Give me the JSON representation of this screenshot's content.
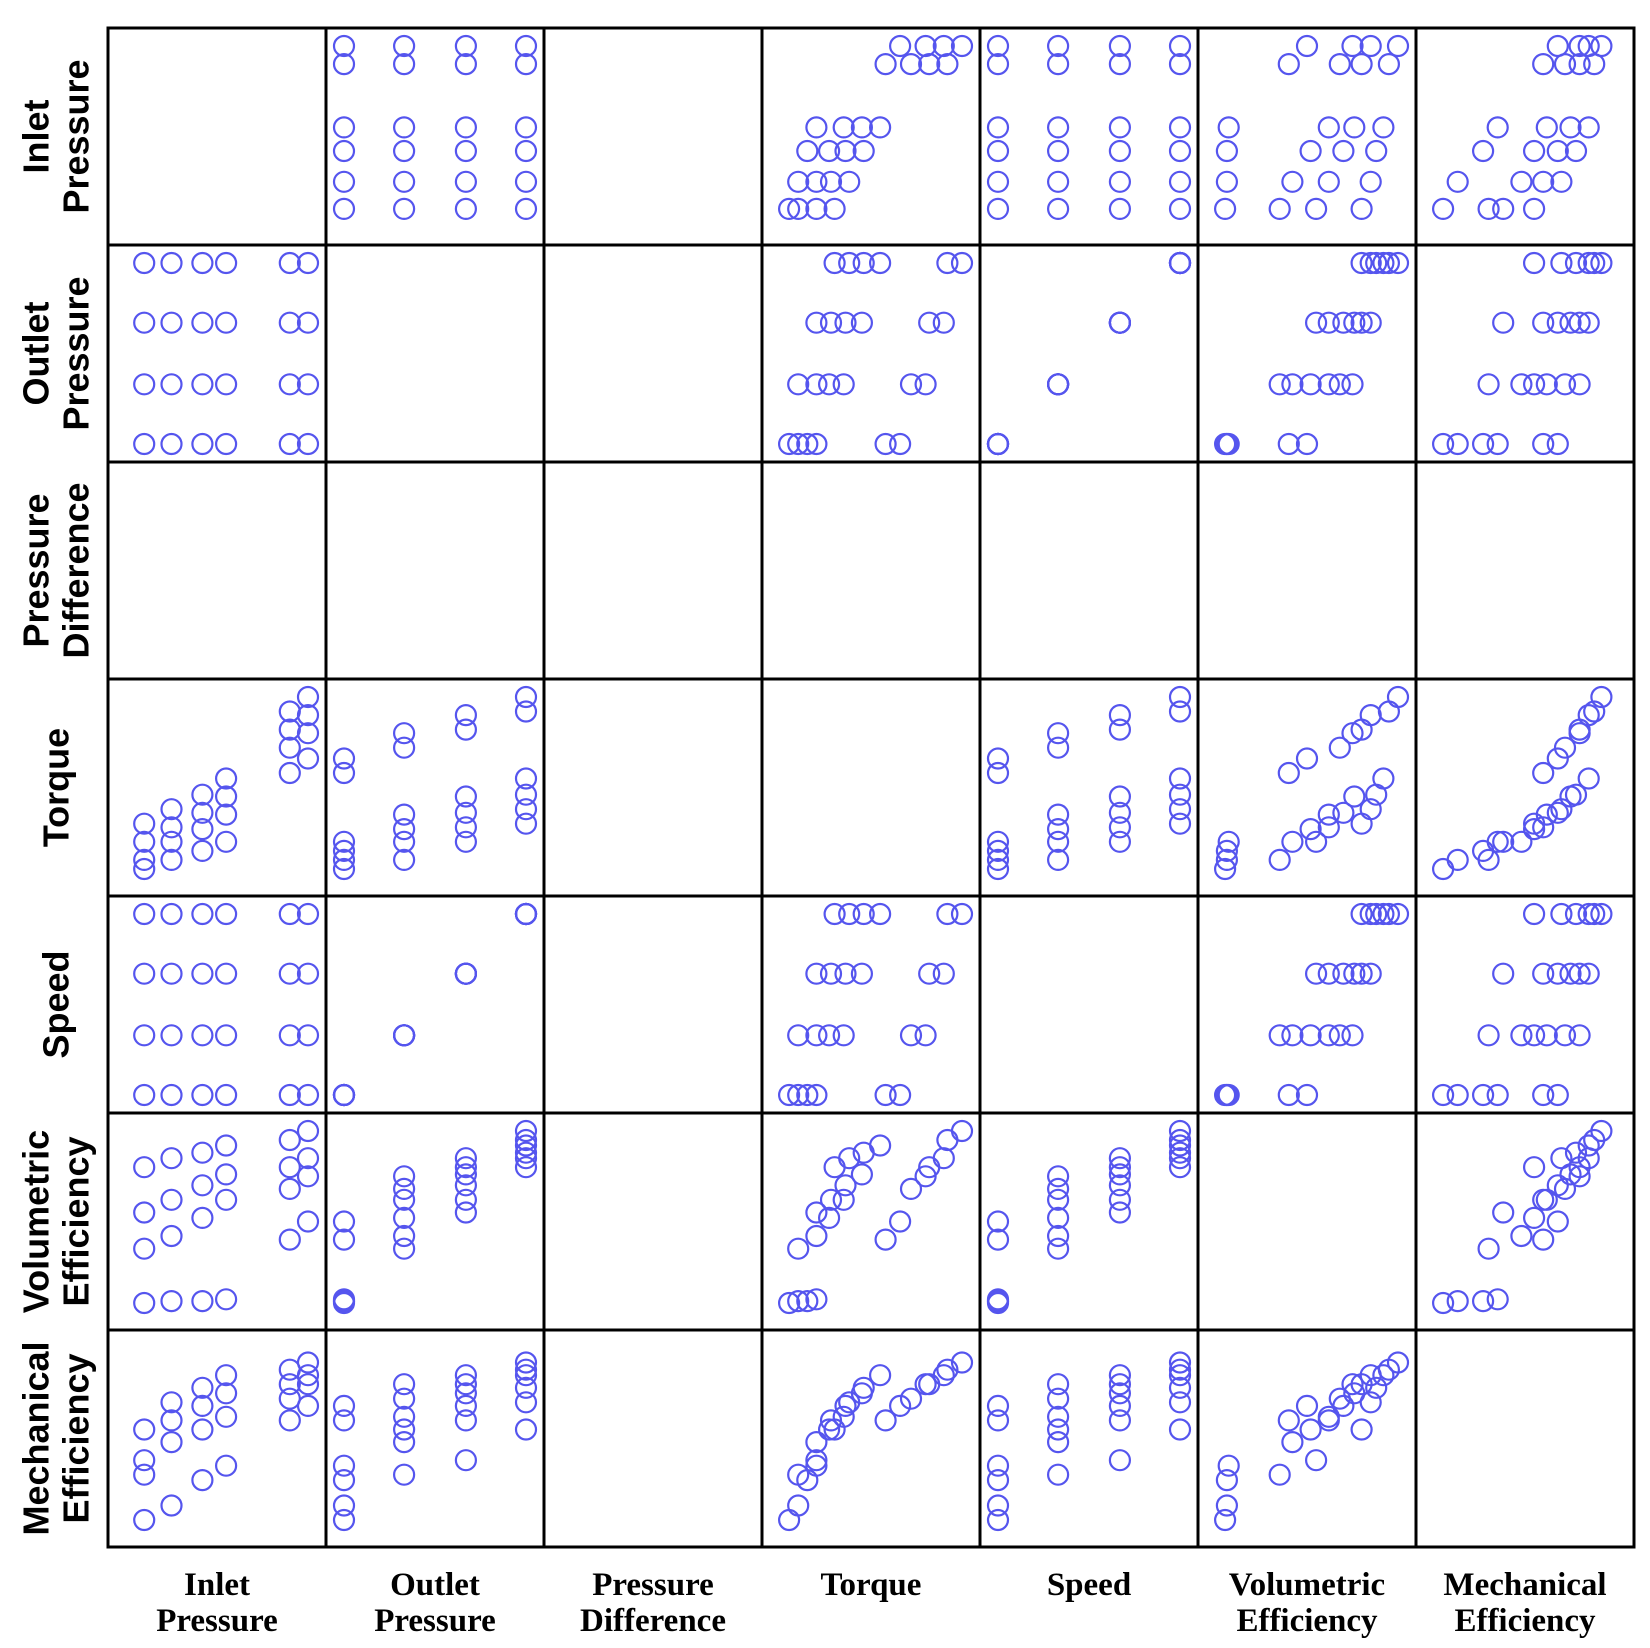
{
  "chart_data": {
    "type": "scatter",
    "layout": "scatter-matrix",
    "grid": false,
    "variables": [
      {
        "key": "ip",
        "label_lines": [
          "Inlet",
          "Pressure"
        ]
      },
      {
        "key": "op",
        "label_lines": [
          "Outlet",
          "Pressure"
        ]
      },
      {
        "key": "pd",
        "label_lines": [
          "Pressure",
          "Difference"
        ]
      },
      {
        "key": "tq",
        "label_lines": [
          "Torque"
        ]
      },
      {
        "key": "sp",
        "label_lines": [
          "Speed"
        ]
      },
      {
        "key": "ve",
        "label_lines": [
          "Volumetric",
          "Efficiency"
        ]
      },
      {
        "key": "me",
        "label_lines": [
          "Mechanical",
          "Efficiency"
        ]
      }
    ],
    "marker": {
      "shape": "open-circle",
      "color": "#5555ee"
    },
    "observations": [
      {
        "ip": 0.1,
        "op": 0.0,
        "sp": 0.0,
        "tq": 0.05,
        "ve": 0.05,
        "me": 0.05
      },
      {
        "ip": 0.25,
        "op": 0.0,
        "sp": 0.0,
        "tq": 0.1,
        "ve": 0.06,
        "me": 0.13
      },
      {
        "ip": 0.42,
        "op": 0.0,
        "sp": 0.0,
        "tq": 0.15,
        "ve": 0.06,
        "me": 0.27
      },
      {
        "ip": 0.55,
        "op": 0.0,
        "sp": 0.0,
        "tq": 0.2,
        "ve": 0.07,
        "me": 0.35
      },
      {
        "ip": 0.9,
        "op": 0.0,
        "sp": 0.0,
        "tq": 0.58,
        "ve": 0.4,
        "me": 0.6
      },
      {
        "ip": 1.0,
        "op": 0.0,
        "sp": 0.0,
        "tq": 0.66,
        "ve": 0.5,
        "me": 0.68
      },
      {
        "ip": 0.1,
        "op": 0.33,
        "sp": 0.33,
        "tq": 0.1,
        "ve": 0.35,
        "me": 0.3
      },
      {
        "ip": 0.25,
        "op": 0.33,
        "sp": 0.33,
        "tq": 0.2,
        "ve": 0.42,
        "me": 0.48
      },
      {
        "ip": 0.42,
        "op": 0.33,
        "sp": 0.33,
        "tq": 0.27,
        "ve": 0.52,
        "me": 0.55
      },
      {
        "ip": 0.55,
        "op": 0.33,
        "sp": 0.33,
        "tq": 0.35,
        "ve": 0.62,
        "me": 0.62
      },
      {
        "ip": 0.9,
        "op": 0.33,
        "sp": 0.33,
        "tq": 0.72,
        "ve": 0.68,
        "me": 0.72
      },
      {
        "ip": 1.0,
        "op": 0.33,
        "sp": 0.33,
        "tq": 0.8,
        "ve": 0.75,
        "me": 0.8
      },
      {
        "ip": 0.1,
        "op": 0.67,
        "sp": 0.67,
        "tq": 0.2,
        "ve": 0.55,
        "me": 0.38
      },
      {
        "ip": 0.25,
        "op": 0.67,
        "sp": 0.67,
        "tq": 0.28,
        "ve": 0.62,
        "me": 0.6
      },
      {
        "ip": 0.42,
        "op": 0.67,
        "sp": 0.67,
        "tq": 0.36,
        "ve": 0.7,
        "me": 0.68
      },
      {
        "ip": 0.55,
        "op": 0.67,
        "sp": 0.67,
        "tq": 0.45,
        "ve": 0.76,
        "me": 0.75
      },
      {
        "ip": 0.9,
        "op": 0.67,
        "sp": 0.67,
        "tq": 0.82,
        "ve": 0.8,
        "me": 0.8
      },
      {
        "ip": 1.0,
        "op": 0.67,
        "sp": 0.67,
        "tq": 0.9,
        "ve": 0.85,
        "me": 0.85
      },
      {
        "ip": 0.1,
        "op": 1.0,
        "sp": 1.0,
        "tq": 0.3,
        "ve": 0.8,
        "me": 0.55
      },
      {
        "ip": 0.25,
        "op": 1.0,
        "sp": 1.0,
        "tq": 0.38,
        "ve": 0.85,
        "me": 0.7
      },
      {
        "ip": 0.42,
        "op": 1.0,
        "sp": 1.0,
        "tq": 0.46,
        "ve": 0.88,
        "me": 0.78
      },
      {
        "ip": 0.55,
        "op": 1.0,
        "sp": 1.0,
        "tq": 0.55,
        "ve": 0.92,
        "me": 0.85
      },
      {
        "ip": 0.9,
        "op": 1.0,
        "sp": 1.0,
        "tq": 0.92,
        "ve": 0.95,
        "me": 0.88
      },
      {
        "ip": 1.0,
        "op": 1.0,
        "sp": 1.0,
        "tq": 1.0,
        "ve": 1.0,
        "me": 0.92
      }
    ]
  }
}
